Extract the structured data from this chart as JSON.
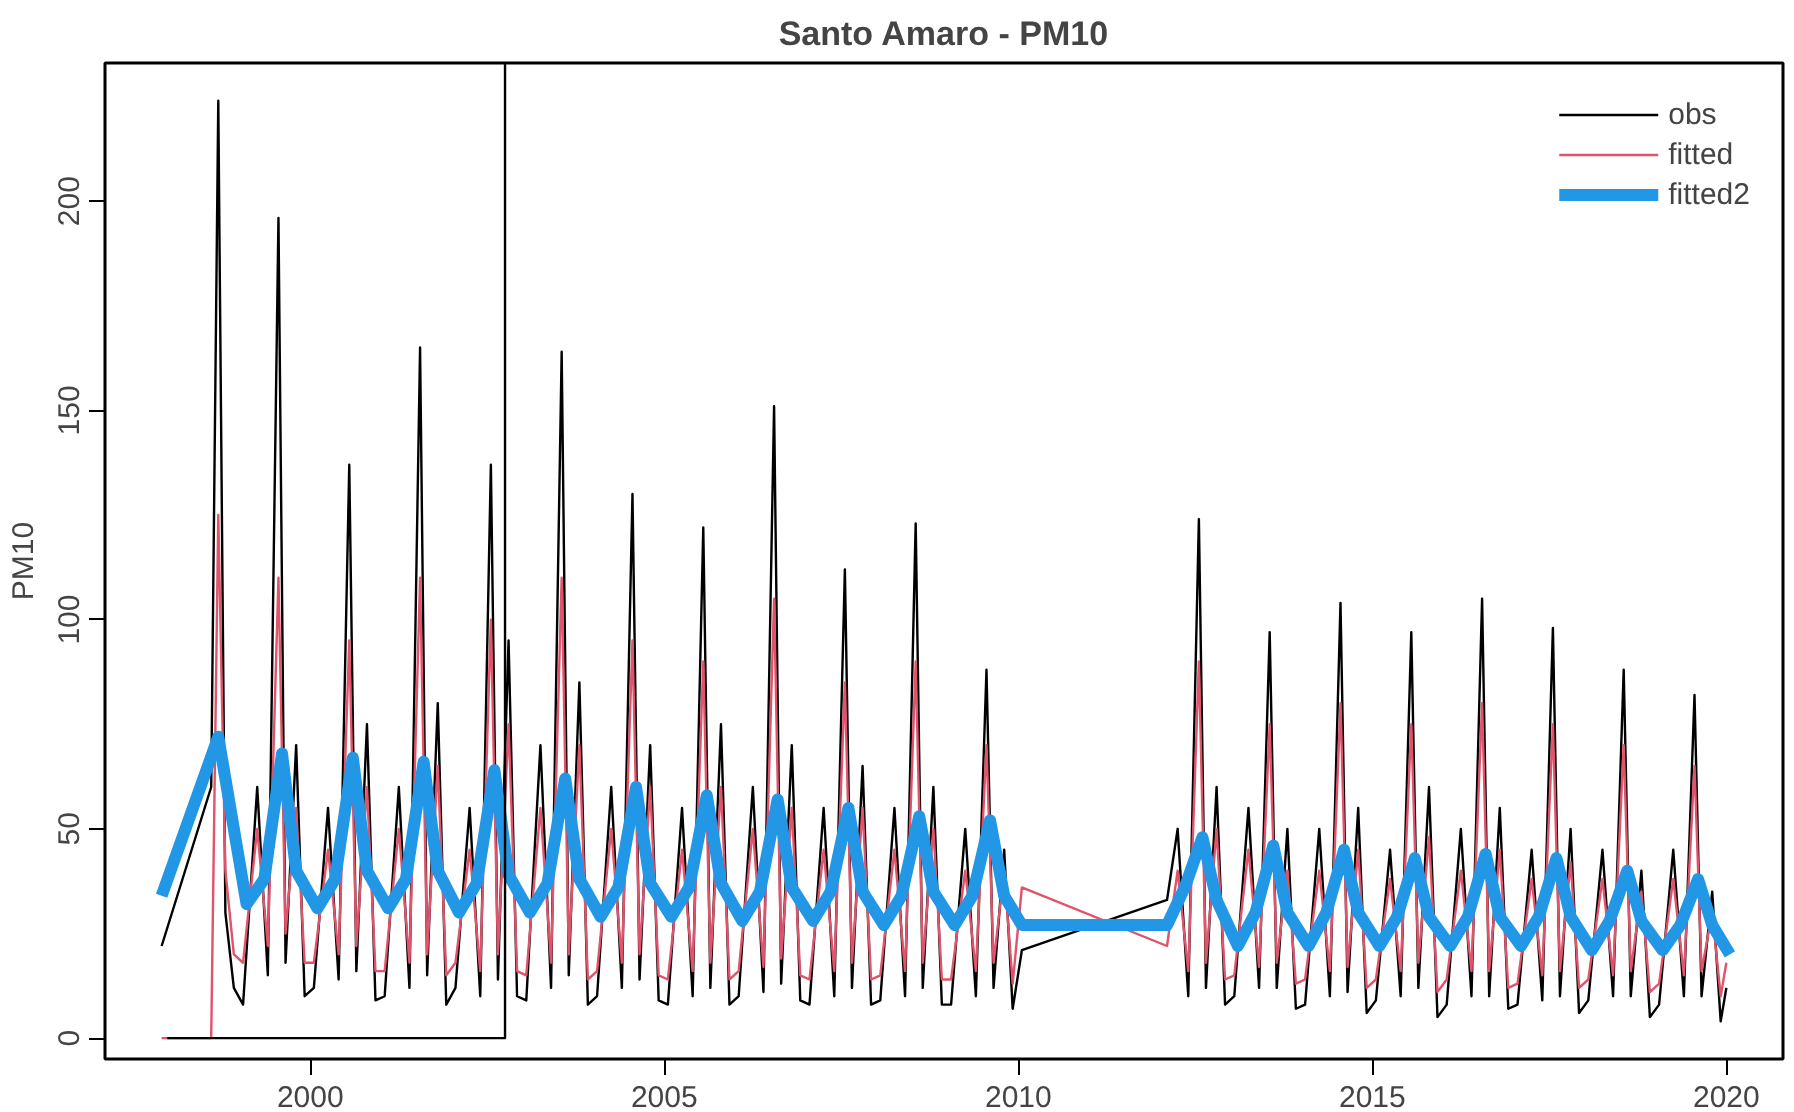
{
  "chart_data": {
    "type": "line",
    "title": "Santo Amaro - PM10",
    "ylabel": "PM10",
    "xlim": [
      1997.1,
      2020.8
    ],
    "xticks": [
      2000,
      2005,
      2010,
      2015,
      2020
    ],
    "ylim": [
      -5,
      233
    ],
    "yticks": [
      0,
      50,
      100,
      150,
      200
    ],
    "grid": false,
    "legend": "top right",
    "line_style": "solid",
    "marker": "none",
    "x": [
      1997.9,
      1998.6,
      1998.7,
      1998.8,
      1998.92,
      1999.05,
      1999.25,
      1999.4,
      1999.55,
      1999.65,
      1999.8,
      1999.92,
      2000.05,
      2000.25,
      2000.4,
      2000.55,
      2000.65,
      2000.8,
      2000.92,
      2001.05,
      2001.25,
      2001.4,
      2001.55,
      2001.65,
      2001.8,
      2001.92,
      2002.05,
      2002.25,
      2002.4,
      2002.55,
      2002.65,
      2002.8,
      2002.92,
      2003.05,
      2003.25,
      2003.4,
      2003.55,
      2003.65,
      2003.8,
      2003.92,
      2004.05,
      2004.25,
      2004.4,
      2004.55,
      2004.65,
      2004.8,
      2004.92,
      2005.05,
      2005.25,
      2005.4,
      2005.55,
      2005.65,
      2005.8,
      2005.92,
      2006.05,
      2006.25,
      2006.4,
      2006.55,
      2006.65,
      2006.8,
      2006.92,
      2007.05,
      2007.25,
      2007.4,
      2007.55,
      2007.65,
      2007.8,
      2007.92,
      2008.05,
      2008.25,
      2008.4,
      2008.55,
      2008.65,
      2008.8,
      2008.92,
      2009.05,
      2009.25,
      2009.4,
      2009.55,
      2009.65,
      2009.8,
      2009.92,
      2010.05,
      2012.1,
      2012.25,
      2012.4,
      2012.55,
      2012.65,
      2012.8,
      2012.92,
      2013.05,
      2013.25,
      2013.4,
      2013.55,
      2013.65,
      2013.8,
      2013.92,
      2014.05,
      2014.25,
      2014.4,
      2014.55,
      2014.65,
      2014.8,
      2014.92,
      2015.05,
      2015.25,
      2015.4,
      2015.55,
      2015.65,
      2015.8,
      2015.92,
      2016.05,
      2016.25,
      2016.4,
      2016.55,
      2016.65,
      2016.8,
      2016.92,
      2017.05,
      2017.25,
      2017.4,
      2017.55,
      2017.65,
      2017.8,
      2017.92,
      2018.05,
      2018.25,
      2018.4,
      2018.55,
      2018.65,
      2018.8,
      2018.92,
      2019.05,
      2019.25,
      2019.4,
      2019.55,
      2019.65,
      2019.8,
      2019.92,
      2020.0
    ],
    "series": [
      {
        "name": "obs",
        "color": "#000000",
        "values": [
          22,
          60,
          224,
          30,
          12,
          8,
          60,
          15,
          196,
          18,
          70,
          10,
          12,
          55,
          14,
          137,
          16,
          75,
          9,
          10,
          60,
          12,
          165,
          15,
          80,
          8,
          12,
          55,
          10,
          137,
          14,
          95,
          10,
          9,
          70,
          12,
          164,
          15,
          85,
          8,
          10,
          60,
          12,
          130,
          14,
          70,
          9,
          8,
          55,
          10,
          122,
          12,
          75,
          8,
          10,
          60,
          11,
          151,
          13,
          70,
          9,
          8,
          55,
          10,
          112,
          12,
          65,
          8,
          9,
          55,
          10,
          123,
          12,
          60,
          8,
          8,
          50,
          10,
          88,
          12,
          45,
          7,
          21,
          33,
          50,
          10,
          124,
          12,
          60,
          8,
          10,
          55,
          12,
          97,
          12,
          50,
          7,
          8,
          50,
          10,
          104,
          11,
          55,
          6,
          9,
          45,
          10,
          97,
          12,
          60,
          5,
          8,
          50,
          10,
          105,
          10,
          55,
          7,
          8,
          45,
          9,
          98,
          10,
          50,
          6,
          9,
          45,
          10,
          88,
          10,
          40,
          5,
          8,
          45,
          10,
          82,
          10,
          35,
          4,
          12
        ]
      },
      {
        "name": "fitted",
        "color": "#df536b",
        "values": [
          0,
          0,
          125,
          40,
          20,
          18,
          50,
          22,
          110,
          25,
          55,
          18,
          18,
          45,
          20,
          95,
          22,
          60,
          16,
          16,
          50,
          18,
          110,
          20,
          65,
          15,
          18,
          45,
          16,
          100,
          20,
          75,
          16,
          15,
          55,
          18,
          110,
          20,
          70,
          14,
          16,
          50,
          18,
          95,
          20,
          60,
          15,
          14,
          45,
          16,
          90,
          18,
          60,
          14,
          16,
          50,
          17,
          105,
          19,
          55,
          15,
          14,
          45,
          16,
          85,
          18,
          55,
          14,
          15,
          45,
          16,
          90,
          18,
          50,
          14,
          14,
          40,
          16,
          70,
          18,
          40,
          13,
          36,
          22,
          40,
          16,
          90,
          18,
          50,
          14,
          15,
          45,
          17,
          75,
          18,
          40,
          13,
          14,
          40,
          16,
          80,
          17,
          45,
          12,
          14,
          38,
          16,
          75,
          18,
          48,
          11,
          14,
          40,
          16,
          80,
          16,
          45,
          12,
          13,
          38,
          15,
          75,
          16,
          42,
          12,
          14,
          38,
          15,
          70,
          16,
          35,
          11,
          13,
          38,
          15,
          65,
          16,
          30,
          10,
          18
        ]
      },
      {
        "name": "fitted2",
        "color": "#2297e6",
        "x": [
          1997.9,
          1998.7,
          1999.1,
          1999.35,
          1999.6,
          1999.8,
          2000.1,
          2000.35,
          2000.6,
          2000.8,
          2001.1,
          2001.35,
          2001.6,
          2001.8,
          2002.1,
          2002.35,
          2002.6,
          2002.8,
          2003.1,
          2003.35,
          2003.6,
          2003.8,
          2004.1,
          2004.35,
          2004.6,
          2004.8,
          2005.1,
          2005.35,
          2005.6,
          2005.8,
          2006.1,
          2006.35,
          2006.6,
          2006.8,
          2007.1,
          2007.35,
          2007.6,
          2007.8,
          2008.1,
          2008.35,
          2008.6,
          2008.8,
          2009.1,
          2009.35,
          2009.6,
          2009.8,
          2010.05,
          2012.1,
          2012.35,
          2012.6,
          2012.8,
          2013.1,
          2013.35,
          2013.6,
          2013.8,
          2014.1,
          2014.35,
          2014.6,
          2014.8,
          2015.1,
          2015.35,
          2015.6,
          2015.8,
          2016.1,
          2016.35,
          2016.6,
          2016.8,
          2017.1,
          2017.35,
          2017.6,
          2017.8,
          2018.1,
          2018.35,
          2018.6,
          2018.8,
          2019.1,
          2019.35,
          2019.6,
          2019.8,
          2020.05
        ],
        "values": [
          34,
          72,
          32,
          38,
          68,
          40,
          31,
          38,
          67,
          40,
          31,
          38,
          66,
          40,
          30,
          37,
          64,
          39,
          30,
          37,
          62,
          38,
          29,
          36,
          60,
          37,
          29,
          36,
          58,
          37,
          28,
          35,
          57,
          36,
          28,
          35,
          55,
          35,
          27,
          34,
          53,
          35,
          27,
          34,
          52,
          34,
          27,
          27,
          36,
          48,
          33,
          22,
          30,
          46,
          30,
          22,
          30,
          45,
          30,
          22,
          29,
          43,
          29,
          22,
          29,
          44,
          29,
          22,
          29,
          43,
          29,
          21,
          28,
          40,
          28,
          21,
          27,
          38,
          27,
          20
        ]
      },
      {
        "color": "#000000",
        "x": [
          1997.98,
          2002.75,
          2002.75
        ],
        "values": [
          0,
          0,
          233
        ]
      }
    ]
  }
}
